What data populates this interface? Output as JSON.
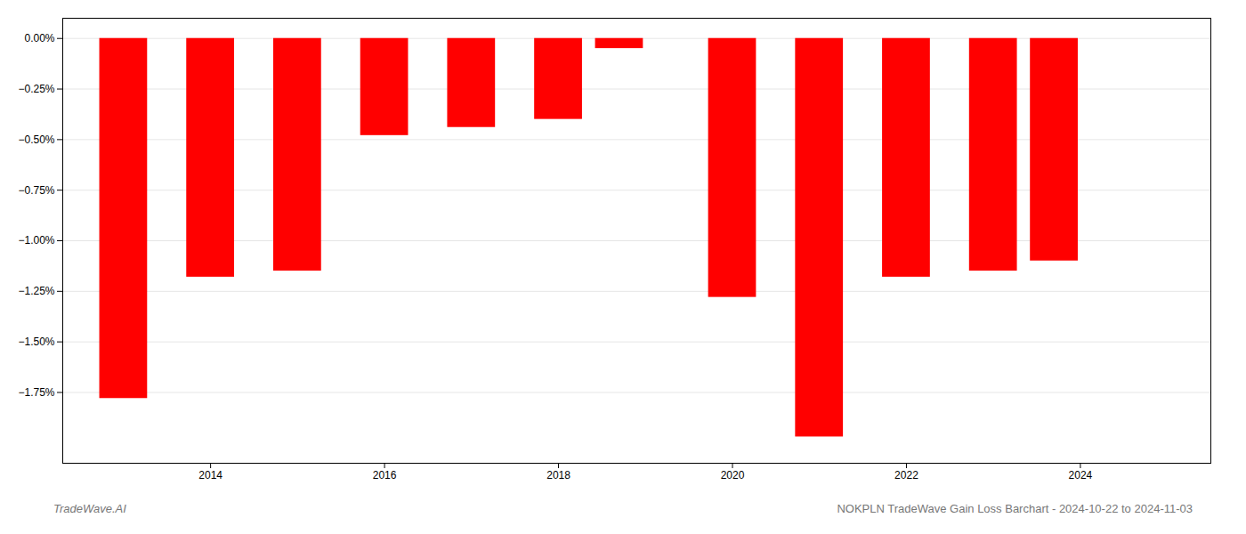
{
  "chart_data": {
    "type": "bar",
    "x": [
      2013,
      2014,
      2015,
      2016,
      2017,
      2018,
      2018.7,
      2020,
      2021,
      2022,
      2023,
      2023.7
    ],
    "values": [
      -1.78,
      -1.18,
      -1.15,
      -0.48,
      -0.44,
      -0.4,
      -0.05,
      -1.28,
      -1.97,
      -1.18,
      -1.15,
      -1.1
    ],
    "color": "#ff0000",
    "xlim": [
      2012.3,
      2025.5
    ],
    "xticks": [
      2014,
      2016,
      2018,
      2020,
      2022,
      2024
    ],
    "ylim": [
      -2.1,
      0.1
    ],
    "yticks": [
      {
        "value": 0.0,
        "label": "0.00%"
      },
      {
        "value": -0.25,
        "label": "−0.25%"
      },
      {
        "value": -0.5,
        "label": "−0.50%"
      },
      {
        "value": -0.75,
        "label": "−0.75%"
      },
      {
        "value": -1.0,
        "label": "−1.00%"
      },
      {
        "value": -1.25,
        "label": "−1.25%"
      },
      {
        "value": -1.5,
        "label": "−1.50%"
      },
      {
        "value": -1.75,
        "label": "−1.75%"
      }
    ],
    "grid": true,
    "annotations": [
      "TradeWave.AI",
      "NOKPLN TradeWave Gain Loss Barchart - 2024-10-22 to 2024-11-03"
    ]
  }
}
